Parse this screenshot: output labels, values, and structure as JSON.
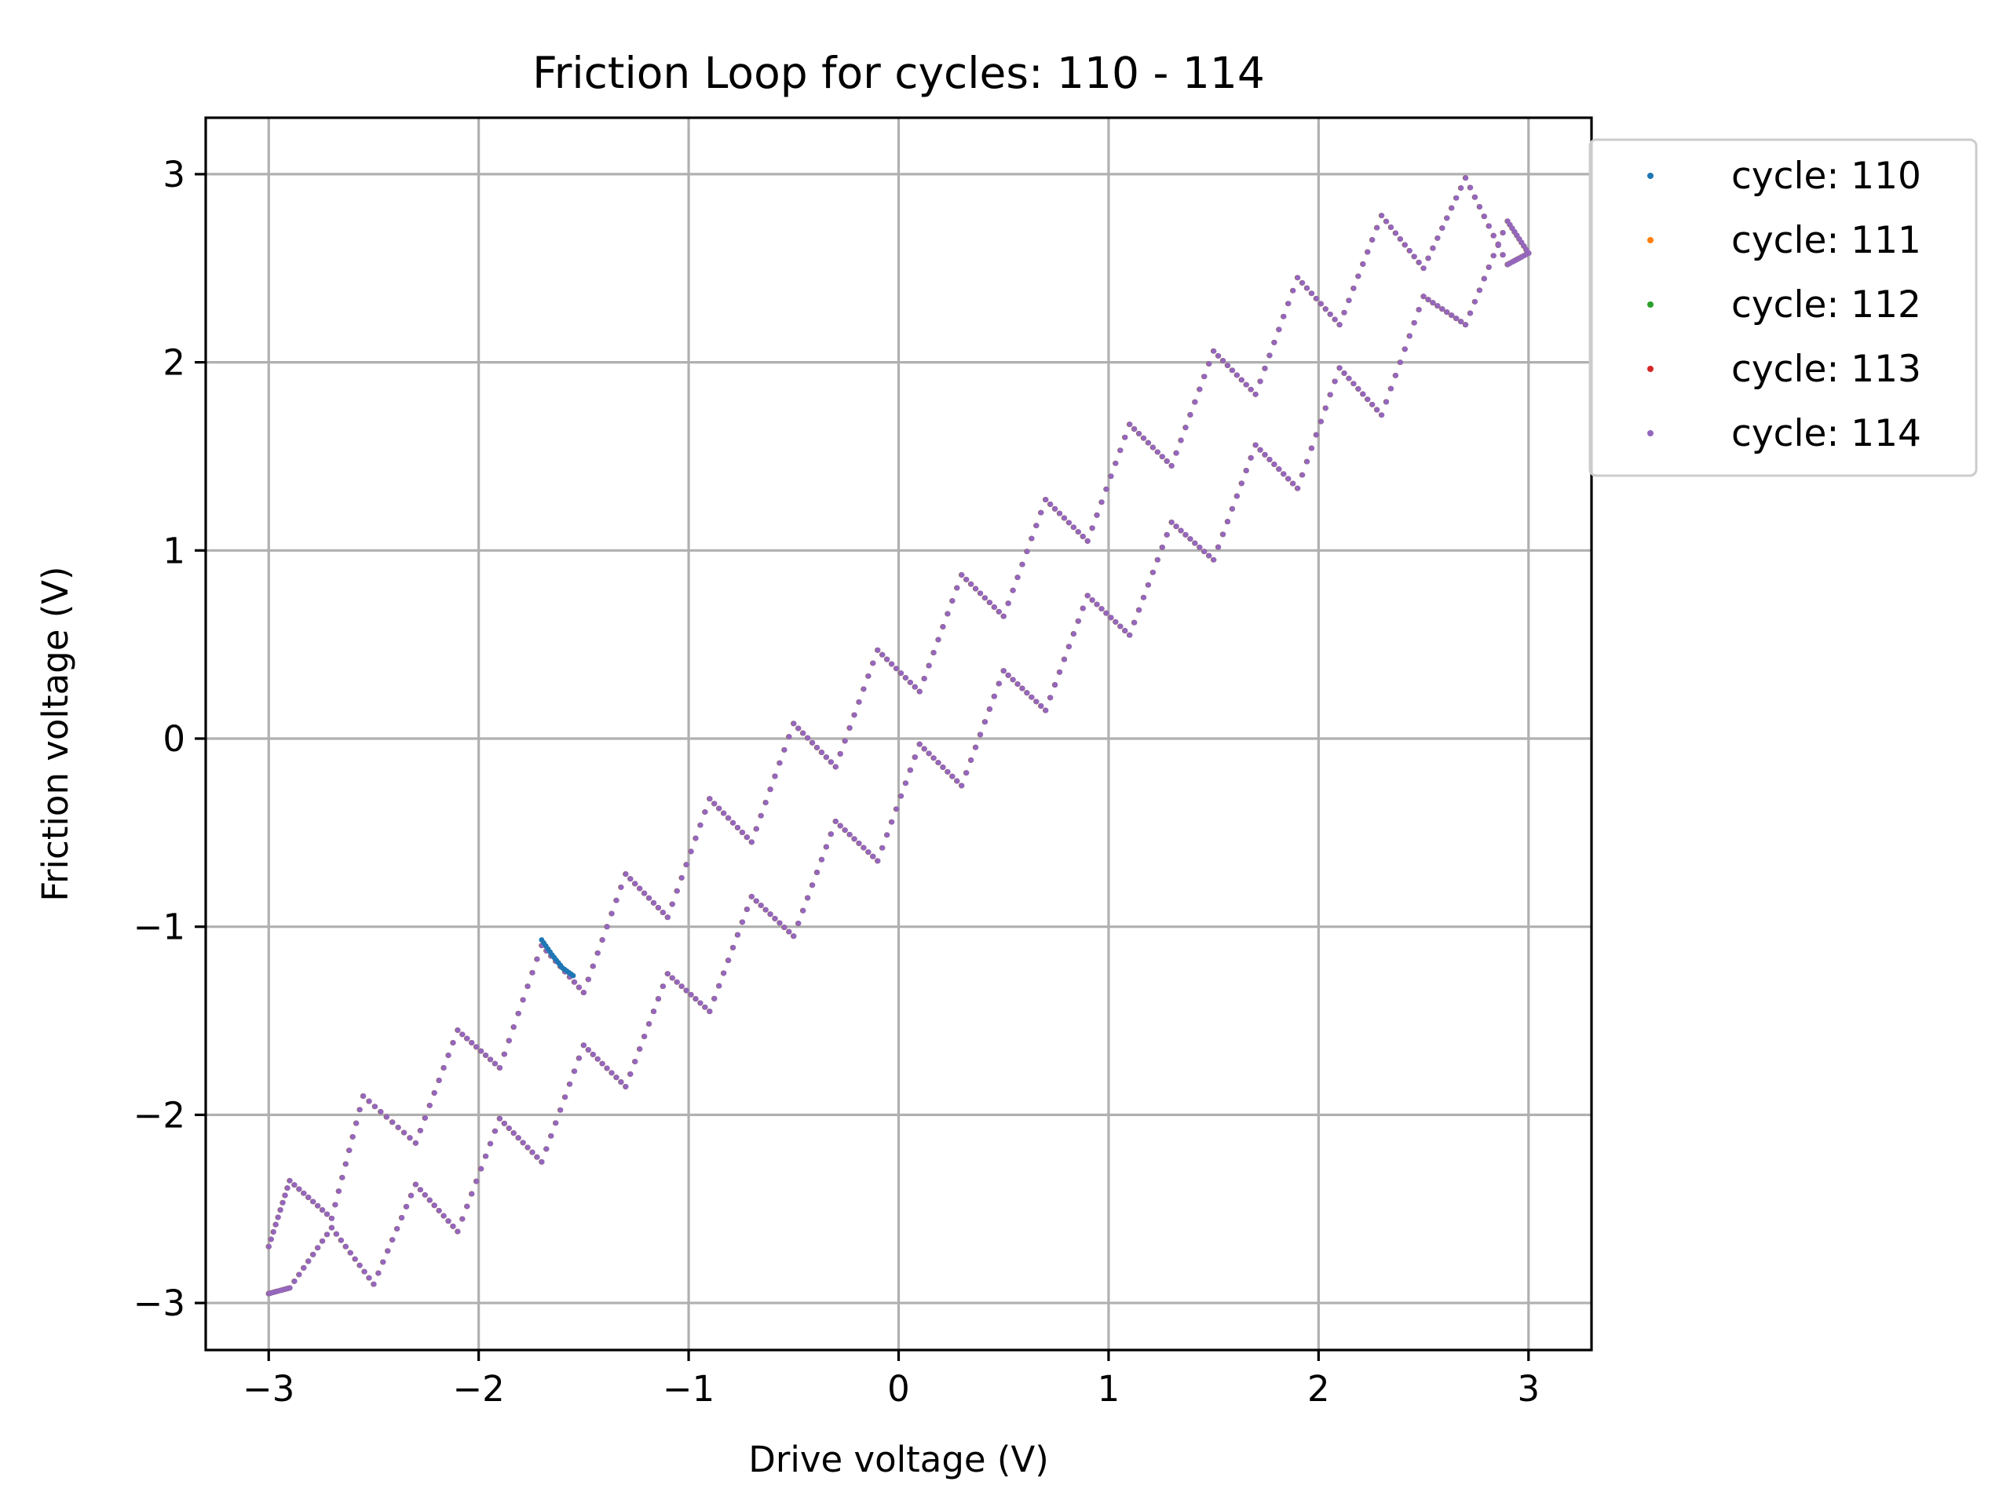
{
  "chart_data": {
    "type": "scatter",
    "title": "Friction Loop for cycles: 110 - 114",
    "xlabel": "Drive voltage (V)",
    "ylabel": "Friction voltage (V)",
    "xlim": [
      -3.3,
      3.3
    ],
    "ylim": [
      -3.25,
      3.3
    ],
    "xticks": [
      -3,
      -2,
      -1,
      0,
      1,
      2,
      3
    ],
    "xtick_labels": [
      "−3",
      "−2",
      "−1",
      "0",
      "1",
      "2",
      "3"
    ],
    "yticks": [
      -3,
      -2,
      -1,
      0,
      1,
      2,
      3
    ],
    "ytick_labels": [
      "−3",
      "−2",
      "−1",
      "0",
      "1",
      "2",
      "3"
    ],
    "grid": true,
    "legend_position": "outside-top-right",
    "x_range": [
      -3,
      3
    ],
    "upper_branch": {
      "x": [
        -3.0,
        -2.9,
        -2.7,
        -2.55,
        -2.3,
        -2.1,
        -1.9,
        -1.7,
        -1.5,
        -1.3,
        -1.1,
        -0.9,
        -0.7,
        -0.5,
        -0.3,
        -0.1,
        0.1,
        0.3,
        0.5,
        0.7,
        0.9,
        1.1,
        1.3,
        1.5,
        1.7,
        1.9,
        2.1,
        2.3,
        2.5,
        2.7,
        2.9,
        3.0
      ],
      "y": [
        -2.7,
        -2.35,
        -2.55,
        -1.9,
        -2.15,
        -1.55,
        -1.75,
        -1.1,
        -1.35,
        -0.72,
        -0.95,
        -0.32,
        -0.55,
        0.08,
        -0.15,
        0.47,
        0.25,
        0.87,
        0.65,
        1.27,
        1.05,
        1.67,
        1.45,
        2.06,
        1.83,
        2.45,
        2.2,
        2.78,
        2.5,
        2.98,
        2.52,
        2.58
      ]
    },
    "lower_branch": {
      "x": [
        3.0,
        2.9,
        2.7,
        2.5,
        2.3,
        2.1,
        1.9,
        1.7,
        1.5,
        1.3,
        1.1,
        0.9,
        0.7,
        0.5,
        0.3,
        0.1,
        -0.1,
        -0.3,
        -0.5,
        -0.7,
        -0.9,
        -1.1,
        -1.3,
        -1.5,
        -1.7,
        -1.9,
        -2.1,
        -2.3,
        -2.5,
        -2.7,
        -2.9,
        -3.0
      ],
      "y": [
        2.58,
        2.75,
        2.2,
        2.35,
        1.72,
        1.97,
        1.33,
        1.56,
        0.95,
        1.15,
        0.55,
        0.76,
        0.15,
        0.36,
        -0.25,
        -0.03,
        -0.65,
        -0.44,
        -1.05,
        -0.84,
        -1.45,
        -1.25,
        -1.85,
        -1.63,
        -2.25,
        -2.02,
        -2.62,
        -2.37,
        -2.9,
        -2.6,
        -2.92,
        -2.95
      ]
    },
    "series": [
      {
        "name": "cycle: 110",
        "color": "#1f77b4"
      },
      {
        "name": "cycle: 111",
        "color": "#ff7f0e"
      },
      {
        "name": "cycle: 112",
        "color": "#2ca02c"
      },
      {
        "name": "cycle: 113",
        "color": "#d62728"
      },
      {
        "name": "cycle: 114",
        "color": "#9467bd"
      }
    ],
    "annotations": {
      "cycle_110_deviation": {
        "x": [
          -1.7,
          -1.65,
          -1.6,
          -1.55
        ],
        "y": [
          -1.07,
          -1.15,
          -1.22,
          -1.26
        ]
      }
    }
  }
}
